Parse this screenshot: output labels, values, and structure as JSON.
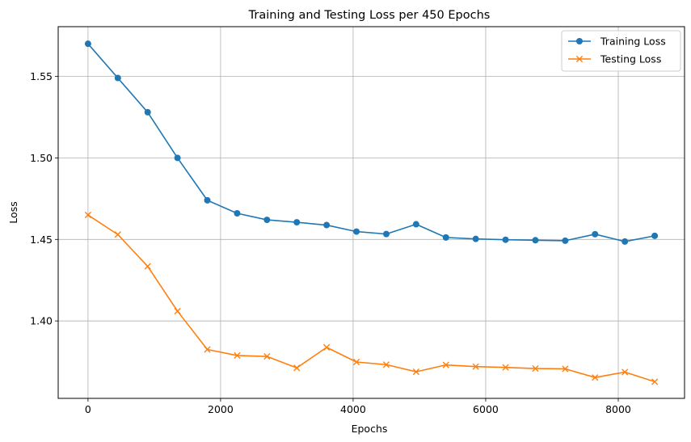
{
  "chart_data": {
    "type": "line",
    "title": "Training and Testing Loss per 450 Epochs",
    "xlabel": "Epochs",
    "ylabel": "Loss",
    "xlim": [
      -450,
      9000
    ],
    "ylim": [
      1.3525,
      1.5805
    ],
    "xticks": [
      0,
      2000,
      4000,
      6000,
      8000
    ],
    "xtick_labels": [
      "0",
      "2000",
      "4000",
      "6000",
      "8000"
    ],
    "yticks": [
      1.4,
      1.45,
      1.5,
      1.55
    ],
    "ytick_labels": [
      "1.40",
      "1.45",
      "1.50",
      "1.55"
    ],
    "grid": true,
    "legend_position": "top-right",
    "x": [
      0,
      450,
      900,
      1350,
      1800,
      2250,
      2700,
      3150,
      3600,
      4050,
      4500,
      4950,
      5400,
      5850,
      6300,
      6750,
      7200,
      7650,
      8100,
      8550
    ],
    "series": [
      {
        "name": "Training Loss",
        "color": "#1f77b4",
        "marker": "circle",
        "values": [
          1.57,
          1.549,
          1.528,
          1.5,
          1.474,
          1.466,
          1.462,
          1.4605,
          1.4588,
          1.4548,
          1.4533,
          1.4593,
          1.4512,
          1.4503,
          1.4498,
          1.4495,
          1.4492,
          1.4532,
          1.4487,
          1.4522
        ]
      },
      {
        "name": "Testing Loss",
        "color": "#ff7f0e",
        "marker": "x",
        "values": [
          1.465,
          1.453,
          1.4335,
          1.406,
          1.3825,
          1.3788,
          1.3782,
          1.3712,
          1.3838,
          1.3748,
          1.3732,
          1.3688,
          1.373,
          1.372,
          1.3715,
          1.3708,
          1.3706,
          1.3653,
          1.3686,
          1.3627
        ]
      }
    ]
  }
}
